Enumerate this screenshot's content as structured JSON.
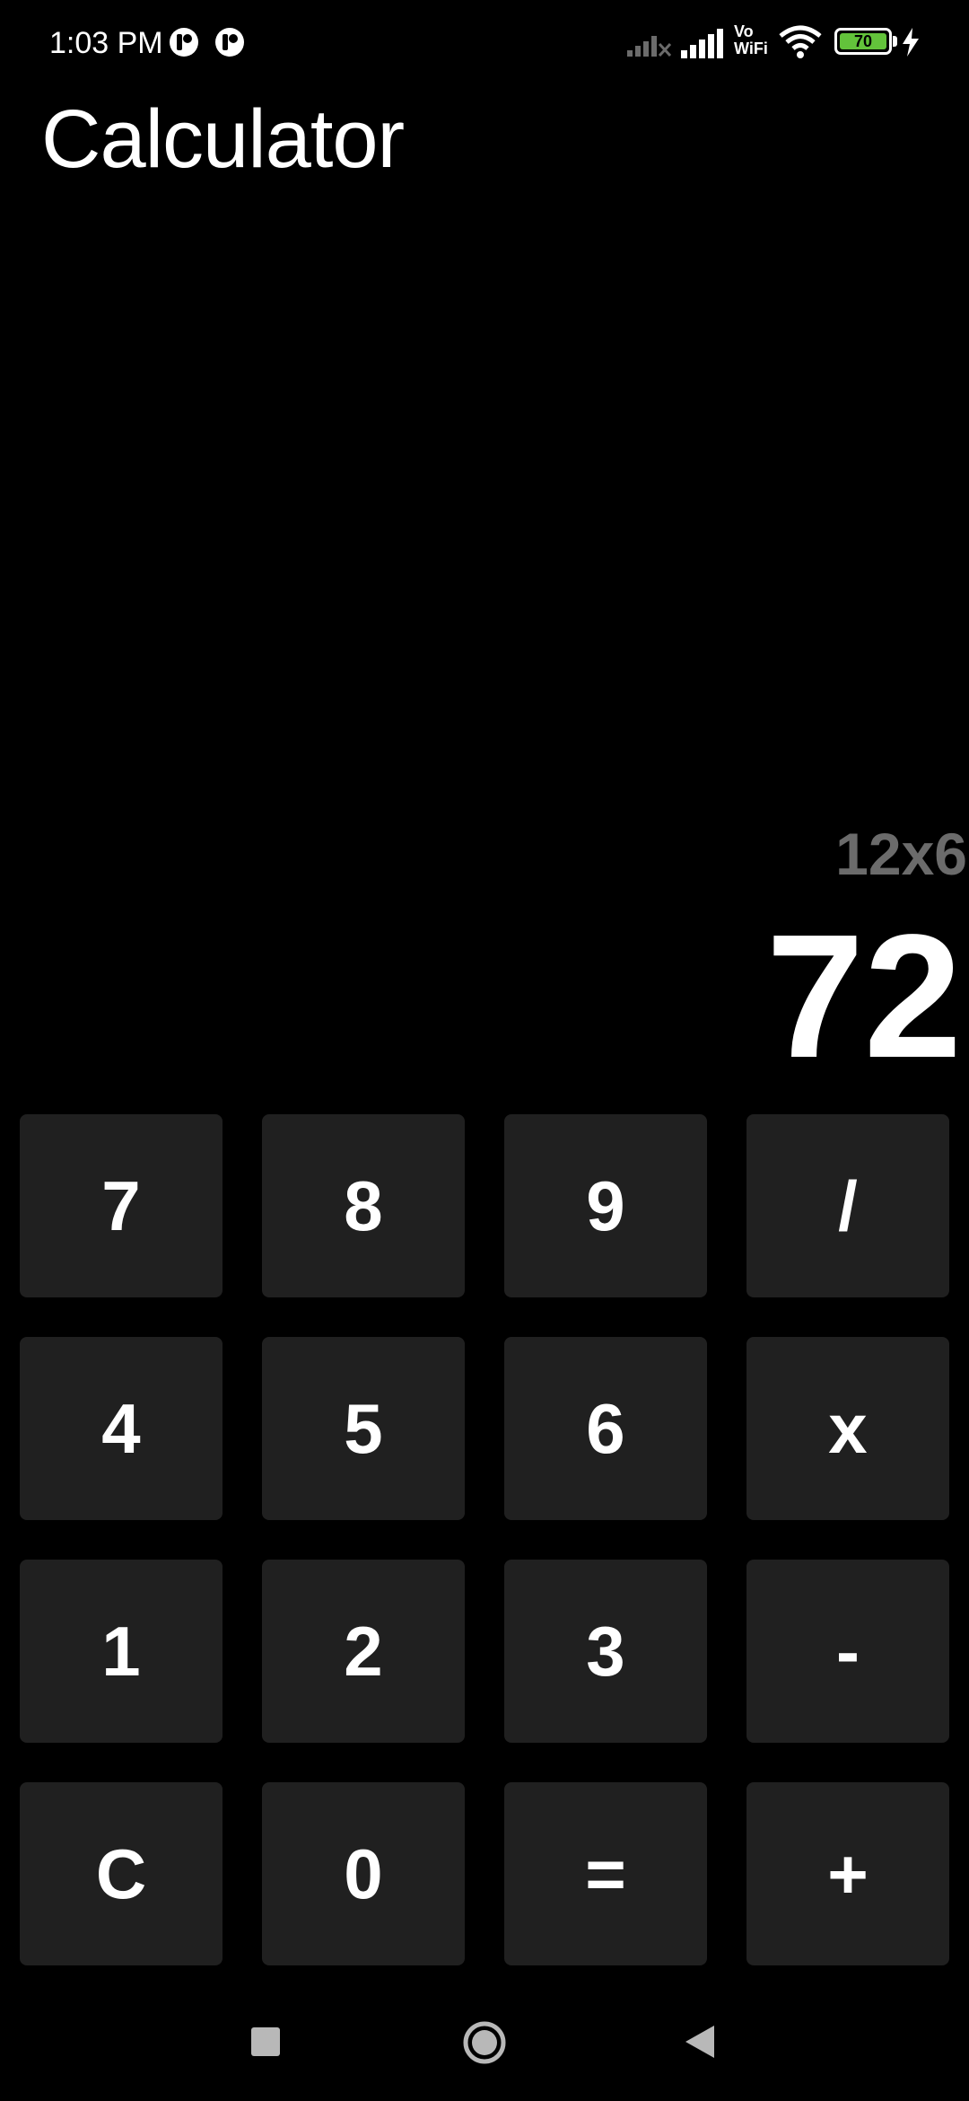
{
  "status_bar": {
    "time": "1:03 PM",
    "network_label": "Vo\nWiFi",
    "network_label_line1": "Vo",
    "network_label_line2": "WiFi",
    "battery_level": "70",
    "battery_color": "#63c33b",
    "icons": [
      "app-notification-icon",
      "app-notification-icon",
      "no-signal-icon",
      "signal-icon",
      "vowifi-icon",
      "wifi-icon",
      "battery-icon",
      "charging-icon"
    ]
  },
  "app": {
    "title": "Calculator"
  },
  "display": {
    "expression": "12x6",
    "result": "72"
  },
  "keypad": {
    "keys": [
      {
        "label": "7",
        "name": "key-7"
      },
      {
        "label": "8",
        "name": "key-8"
      },
      {
        "label": "9",
        "name": "key-9"
      },
      {
        "label": "/",
        "name": "key-divide"
      },
      {
        "label": "4",
        "name": "key-4"
      },
      {
        "label": "5",
        "name": "key-5"
      },
      {
        "label": "6",
        "name": "key-6"
      },
      {
        "label": "x",
        "name": "key-multiply"
      },
      {
        "label": "1",
        "name": "key-1"
      },
      {
        "label": "2",
        "name": "key-2"
      },
      {
        "label": "3",
        "name": "key-3"
      },
      {
        "label": "-",
        "name": "key-subtract"
      },
      {
        "label": "C",
        "name": "key-clear"
      },
      {
        "label": "0",
        "name": "key-0"
      },
      {
        "label": "=",
        "name": "key-equals"
      },
      {
        "label": "+",
        "name": "key-add"
      }
    ]
  },
  "nav_bar": {
    "icons": [
      "recents-icon",
      "home-icon",
      "back-icon"
    ]
  },
  "colors": {
    "background": "#000000",
    "key_background": "#202020",
    "expression_text": "#6b6b6b",
    "text": "#ffffff"
  }
}
